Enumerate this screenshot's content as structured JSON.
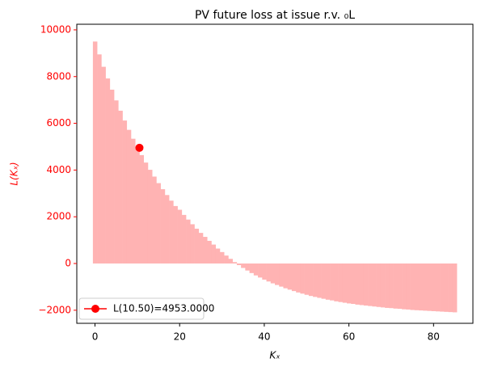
{
  "chart_data": {
    "type": "bar",
    "title": "PV future loss at issue r.v. ₀L",
    "xlabel": "Kₓ",
    "ylabel": "L(Kₓ)",
    "x": [
      0,
      1,
      2,
      3,
      4,
      5,
      6,
      7,
      8,
      9,
      10,
      11,
      12,
      13,
      14,
      15,
      16,
      17,
      18,
      19,
      20,
      21,
      22,
      23,
      24,
      25,
      26,
      27,
      28,
      29,
      30,
      31,
      32,
      33,
      34,
      35,
      36,
      37,
      38,
      39,
      40,
      41,
      42,
      43,
      44,
      45,
      46,
      47,
      48,
      49,
      50,
      51,
      52,
      53,
      54,
      55,
      56,
      57,
      58,
      59,
      60,
      61,
      62,
      63,
      64,
      65,
      66,
      67,
      68,
      69,
      70,
      71,
      72,
      73,
      74,
      75,
      76,
      77,
      78,
      79,
      80,
      81,
      82,
      83,
      84,
      85
    ],
    "values": [
      9500,
      8950,
      8420,
      7920,
      7440,
      6980,
      6540,
      6120,
      5720,
      5340,
      4980,
      4640,
      4320,
      4010,
      3720,
      3440,
      3180,
      2930,
      2690,
      2460,
      2300,
      2080,
      1880,
      1680,
      1490,
      1310,
      1140,
      970,
      810,
      640,
      490,
      340,
      200,
      60,
      -70,
      -190,
      -300,
      -410,
      -510,
      -600,
      -690,
      -770,
      -850,
      -920,
      -990,
      -1060,
      -1120,
      -1180,
      -1240,
      -1290,
      -1340,
      -1390,
      -1430,
      -1470,
      -1510,
      -1550,
      -1580,
      -1620,
      -1650,
      -1680,
      -1710,
      -1730,
      -1760,
      -1780,
      -1800,
      -1820,
      -1840,
      -1860,
      -1880,
      -1900,
      -1910,
      -1930,
      -1940,
      -1960,
      -1970,
      -1990,
      -2000,
      -2010,
      -2020,
      -2030,
      -2040,
      -2050,
      -2060,
      -2070,
      -2080,
      -2090
    ],
    "color": "#ffb3b3",
    "markers": [
      {
        "name": "L(10.50)=4953.0000",
        "x": 10.5,
        "y": 4953,
        "color": "#ff0000"
      }
    ],
    "xlim": [
      -4.3,
      89.3
    ],
    "ylim": [
      -2560,
      10240
    ],
    "xticks": [
      0,
      20,
      40,
      60,
      80
    ],
    "yticks": [
      {
        "value": -2000,
        "label": "−2000"
      },
      0,
      2000,
      4000,
      6000,
      8000,
      10000
    ],
    "ytick_color": "#ff0000",
    "ylabel_color": "#ff0000",
    "legend": "lower left"
  }
}
